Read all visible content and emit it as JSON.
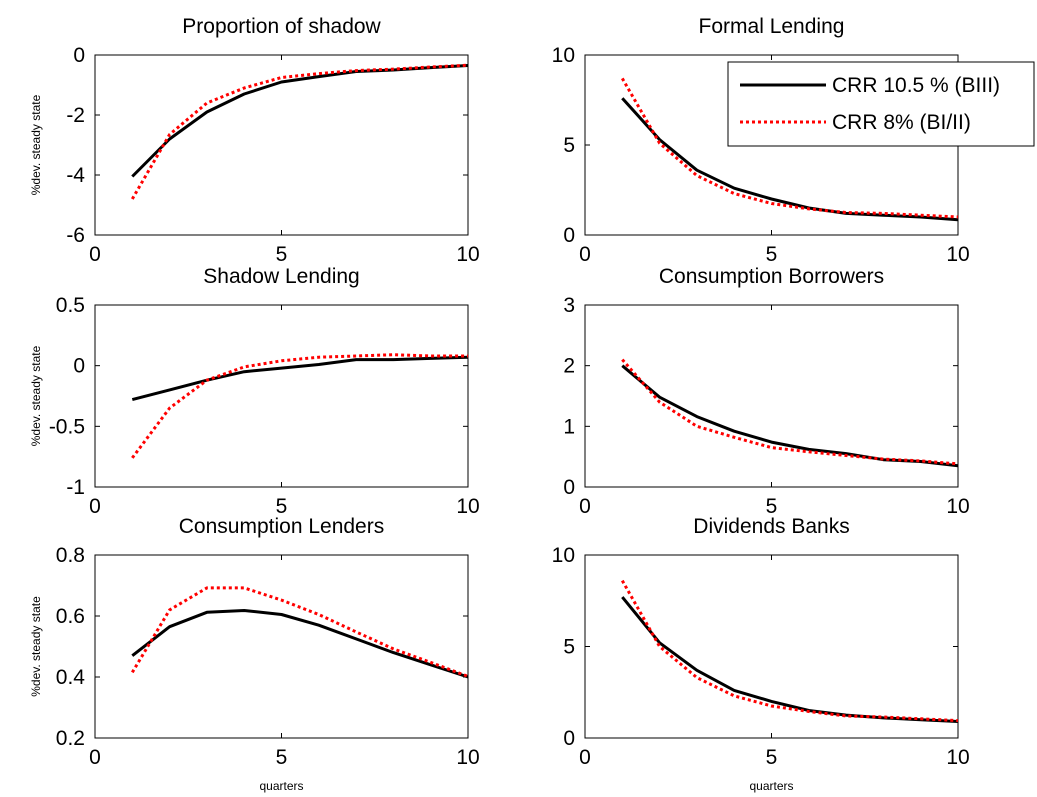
{
  "legend": [
    {
      "label": "CRR 10.5 % (BIII)",
      "color": "#000000",
      "dash": "solid"
    },
    {
      "label": "CRR 8% (BI/II)",
      "color": "#ff0000",
      "dash": "dotted"
    }
  ],
  "chart_data": [
    {
      "type": "line",
      "title": "Proportion of shadow",
      "ylabel": "%dev. steady state",
      "xlabel": "",
      "xlim": [
        0,
        10
      ],
      "ylim": [
        -6,
        0
      ],
      "xticks": [
        0,
        5,
        10
      ],
      "yticks": [
        -6,
        -4,
        -2,
        0
      ],
      "x": [
        1,
        2,
        3,
        4,
        5,
        6,
        7,
        8,
        9,
        10
      ],
      "series": [
        {
          "name": "CRR 10.5 % (BIII)",
          "values": [
            -4.05,
            -2.8,
            -1.9,
            -1.3,
            -0.9,
            -0.72,
            -0.55,
            -0.5,
            -0.42,
            -0.35
          ]
        },
        {
          "name": "CRR 8% (BI/II)",
          "values": [
            -4.8,
            -2.65,
            -1.6,
            -1.1,
            -0.75,
            -0.62,
            -0.52,
            -0.47,
            -0.4,
            -0.34
          ]
        }
      ]
    },
    {
      "type": "line",
      "title": "Formal Lending",
      "ylabel": "",
      "xlabel": "",
      "xlim": [
        0,
        10
      ],
      "ylim": [
        0,
        10
      ],
      "xticks": [
        0,
        5,
        10
      ],
      "yticks": [
        0,
        5,
        10
      ],
      "x": [
        1,
        2,
        3,
        4,
        5,
        6,
        7,
        8,
        9,
        10
      ],
      "series": [
        {
          "name": "CRR 10.5 % (BIII)",
          "values": [
            7.6,
            5.3,
            3.6,
            2.6,
            2.0,
            1.5,
            1.2,
            1.1,
            1.0,
            0.85
          ]
        },
        {
          "name": "CRR 8% (BI/II)",
          "values": [
            8.7,
            5.1,
            3.3,
            2.3,
            1.75,
            1.45,
            1.25,
            1.2,
            1.1,
            1.0
          ]
        }
      ]
    },
    {
      "type": "line",
      "title": "Shadow Lending",
      "ylabel": "%dev. steady state",
      "xlabel": "",
      "xlim": [
        0,
        10
      ],
      "ylim": [
        -1,
        0.5
      ],
      "xticks": [
        0,
        5,
        10
      ],
      "yticks": [
        -1,
        -0.5,
        0,
        0.5
      ],
      "x": [
        1,
        2,
        3,
        4,
        5,
        6,
        7,
        8,
        9,
        10
      ],
      "series": [
        {
          "name": "CRR 10.5 % (BIII)",
          "values": [
            -0.28,
            -0.2,
            -0.12,
            -0.05,
            -0.02,
            0.01,
            0.05,
            0.05,
            0.06,
            0.07
          ]
        },
        {
          "name": "CRR 8% (BI/II)",
          "values": [
            -0.76,
            -0.35,
            -0.12,
            -0.01,
            0.04,
            0.07,
            0.08,
            0.09,
            0.08,
            0.08
          ]
        }
      ]
    },
    {
      "type": "line",
      "title": "Consumption Borrowers",
      "ylabel": "",
      "xlabel": "",
      "xlim": [
        0,
        10
      ],
      "ylim": [
        0,
        3
      ],
      "xticks": [
        0,
        5,
        10
      ],
      "yticks": [
        0,
        1,
        2,
        3
      ],
      "x": [
        1,
        2,
        3,
        4,
        5,
        6,
        7,
        8,
        9,
        10
      ],
      "series": [
        {
          "name": "CRR 10.5 % (BIII)",
          "values": [
            2.0,
            1.48,
            1.16,
            0.92,
            0.74,
            0.62,
            0.55,
            0.45,
            0.42,
            0.35
          ]
        },
        {
          "name": "CRR 8% (BI/II)",
          "values": [
            2.1,
            1.4,
            1.0,
            0.82,
            0.65,
            0.58,
            0.52,
            0.46,
            0.43,
            0.38
          ]
        }
      ]
    },
    {
      "type": "line",
      "title": "Consumption Lenders",
      "ylabel": "%dev. steady state",
      "xlabel": "quarters",
      "xlim": [
        0,
        10
      ],
      "ylim": [
        0.2,
        0.8
      ],
      "xticks": [
        0,
        5,
        10
      ],
      "yticks": [
        0.2,
        0.4,
        0.6,
        0.8
      ],
      "x": [
        1,
        2,
        3,
        4,
        5,
        6,
        7,
        8,
        9,
        10
      ],
      "series": [
        {
          "name": "CRR 10.5 % (BIII)",
          "values": [
            0.47,
            0.565,
            0.612,
            0.618,
            0.605,
            0.57,
            0.525,
            0.48,
            0.44,
            0.4
          ]
        },
        {
          "name": "CRR 8% (BI/II)",
          "values": [
            0.415,
            0.62,
            0.692,
            0.692,
            0.652,
            0.605,
            0.548,
            0.492,
            0.448,
            0.402
          ]
        }
      ]
    },
    {
      "type": "line",
      "title": "Dividends Banks",
      "ylabel": "",
      "xlabel": "quarters",
      "xlim": [
        0,
        10
      ],
      "ylim": [
        0,
        10
      ],
      "xticks": [
        0,
        5,
        10
      ],
      "yticks": [
        0,
        5,
        10
      ],
      "x": [
        1,
        2,
        3,
        4,
        5,
        6,
        7,
        8,
        9,
        10
      ],
      "series": [
        {
          "name": "CRR 10.5 % (BIII)",
          "values": [
            7.7,
            5.2,
            3.7,
            2.6,
            2.0,
            1.5,
            1.25,
            1.1,
            1.0,
            0.9
          ]
        },
        {
          "name": "CRR 8% (BI/II)",
          "values": [
            8.6,
            5.0,
            3.3,
            2.3,
            1.75,
            1.45,
            1.2,
            1.15,
            1.05,
            0.95
          ]
        }
      ]
    }
  ]
}
